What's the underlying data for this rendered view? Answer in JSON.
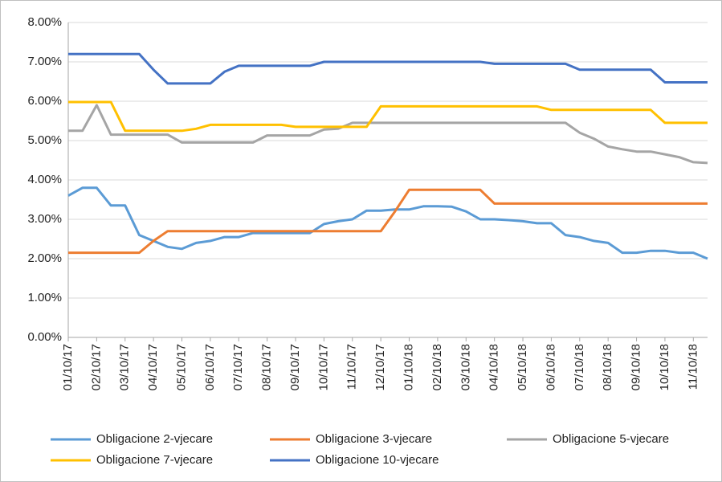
{
  "chart_data": {
    "type": "line",
    "categories": [
      "01/10/17",
      null,
      "02/10/17",
      null,
      "03/10/17",
      null,
      "04/10/17",
      null,
      "05/10/17",
      null,
      "06/10/17",
      null,
      "07/10/17",
      null,
      "08/10/17",
      null,
      "09/10/17",
      null,
      "10/10/17",
      null,
      "11/10/17",
      null,
      "12/10/17",
      null,
      "01/10/18",
      null,
      "02/10/18",
      null,
      "03/10/18",
      null,
      "04/10/18",
      null,
      "05/10/18",
      null,
      "06/10/18",
      null,
      "07/10/18",
      null,
      "08/10/18",
      null,
      "09/10/18",
      null,
      "10/10/18",
      null,
      "11/10/18",
      null
    ],
    "series": [
      {
        "name": "Obligacione 2-vjecare",
        "color": "#5b9bd5",
        "values": [
          3.6,
          3.8,
          3.8,
          3.35,
          3.35,
          2.6,
          2.45,
          2.3,
          2.25,
          2.4,
          2.45,
          2.55,
          2.55,
          2.65,
          2.65,
          2.65,
          2.65,
          2.65,
          2.88,
          2.95,
          3.0,
          3.22,
          3.22,
          3.25,
          3.25,
          3.33,
          3.33,
          3.32,
          3.2,
          3.0,
          3.0,
          2.98,
          2.95,
          2.9,
          2.9,
          2.6,
          2.55,
          2.45,
          2.4,
          2.15,
          2.15,
          2.2,
          2.2,
          2.15,
          2.15,
          2.0
        ]
      },
      {
        "name": "Obligacione 3-vjecare",
        "color": "#ed7d31",
        "values": [
          2.15,
          2.15,
          2.15,
          2.15,
          2.15,
          2.15,
          2.45,
          2.7,
          2.7,
          2.7,
          2.7,
          2.7,
          2.7,
          2.7,
          2.7,
          2.7,
          2.7,
          2.7,
          2.7,
          2.7,
          2.7,
          2.7,
          2.7,
          3.2,
          3.75,
          3.75,
          3.75,
          3.75,
          3.75,
          3.75,
          3.4,
          3.4,
          3.4,
          3.4,
          3.4,
          3.4,
          3.4,
          3.4,
          3.4,
          3.4,
          3.4,
          3.4,
          3.4,
          3.4,
          3.4,
          3.4
        ]
      },
      {
        "name": "Obligacione 5-vjecare",
        "color": "#a5a5a5",
        "values": [
          5.25,
          5.25,
          5.9,
          5.15,
          5.15,
          5.15,
          5.15,
          5.15,
          4.95,
          4.95,
          4.95,
          4.95,
          4.95,
          4.95,
          5.13,
          5.13,
          5.13,
          5.13,
          5.28,
          5.3,
          5.45,
          5.45,
          5.45,
          5.45,
          5.45,
          5.45,
          5.45,
          5.45,
          5.45,
          5.45,
          5.45,
          5.45,
          5.45,
          5.45,
          5.45,
          5.45,
          5.2,
          5.05,
          4.85,
          4.78,
          4.72,
          4.72,
          4.65,
          4.58,
          4.45,
          4.43
        ]
      },
      {
        "name": "Obligacione 7-vjecare",
        "color": "#ffc000",
        "values": [
          5.98,
          5.98,
          5.98,
          5.98,
          5.25,
          5.25,
          5.25,
          5.25,
          5.25,
          5.3,
          5.4,
          5.4,
          5.4,
          5.4,
          5.4,
          5.4,
          5.35,
          5.35,
          5.35,
          5.35,
          5.35,
          5.35,
          5.87,
          5.87,
          5.87,
          5.87,
          5.87,
          5.87,
          5.87,
          5.87,
          5.87,
          5.87,
          5.87,
          5.87,
          5.78,
          5.78,
          5.78,
          5.78,
          5.78,
          5.78,
          5.78,
          5.78,
          5.45,
          5.45,
          5.45,
          5.45
        ]
      },
      {
        "name": "Obligacione 10-vjecare",
        "color": "#4472c4",
        "values": [
          7.2,
          7.2,
          7.2,
          7.2,
          7.2,
          7.2,
          6.8,
          6.45,
          6.45,
          6.45,
          6.45,
          6.75,
          6.9,
          6.9,
          6.9,
          6.9,
          6.9,
          6.9,
          7.0,
          7.0,
          7.0,
          7.0,
          7.0,
          7.0,
          7.0,
          7.0,
          7.0,
          7.0,
          7.0,
          7.0,
          6.95,
          6.95,
          6.95,
          6.95,
          6.95,
          6.95,
          6.8,
          6.8,
          6.8,
          6.8,
          6.8,
          6.8,
          6.48,
          6.48,
          6.48,
          6.48
        ]
      }
    ],
    "ylim": [
      0,
      8
    ],
    "yticks": [
      {
        "value": 0,
        "label": "0.00%"
      },
      {
        "value": 1,
        "label": "1.00%"
      },
      {
        "value": 2,
        "label": "2.00%"
      },
      {
        "value": 3,
        "label": "3.00%"
      },
      {
        "value": 4,
        "label": "4.00%"
      },
      {
        "value": 5,
        "label": "5.00%"
      },
      {
        "value": 6,
        "label": "6.00%"
      },
      {
        "value": 7,
        "label": "7.00%"
      },
      {
        "value": 8,
        "label": "8.00%"
      }
    ],
    "grid": true
  }
}
